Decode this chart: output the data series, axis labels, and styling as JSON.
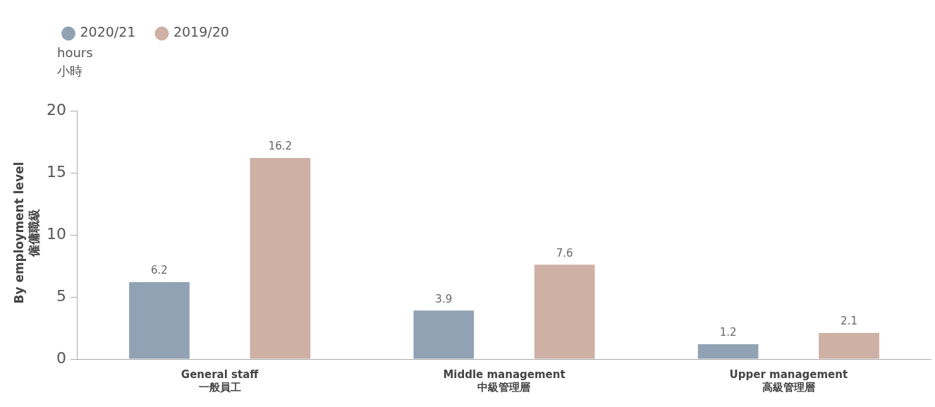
{
  "chart_data": {
    "type": "bar",
    "title": "By employment level\n僱傭職級",
    "ylabel": "hours\n小時",
    "categories": [
      "General staff\n一般員工",
      "Middle management\n中級管理層",
      "Upper management\n高級管理層"
    ],
    "series": [
      {
        "name": "2020/21",
        "color": "#91a2b4",
        "values": [
          6.2,
          3.9,
          1.2
        ]
      },
      {
        "name": "2019/20",
        "color": "#ceb0a5",
        "values": [
          16.2,
          7.6,
          2.1
        ]
      }
    ],
    "ylim": [
      0,
      20
    ],
    "yticks": [
      0,
      5,
      10,
      15,
      20
    ],
    "grid": false,
    "legend": "top left",
    "marker": "circle",
    "data_labels": true
  }
}
